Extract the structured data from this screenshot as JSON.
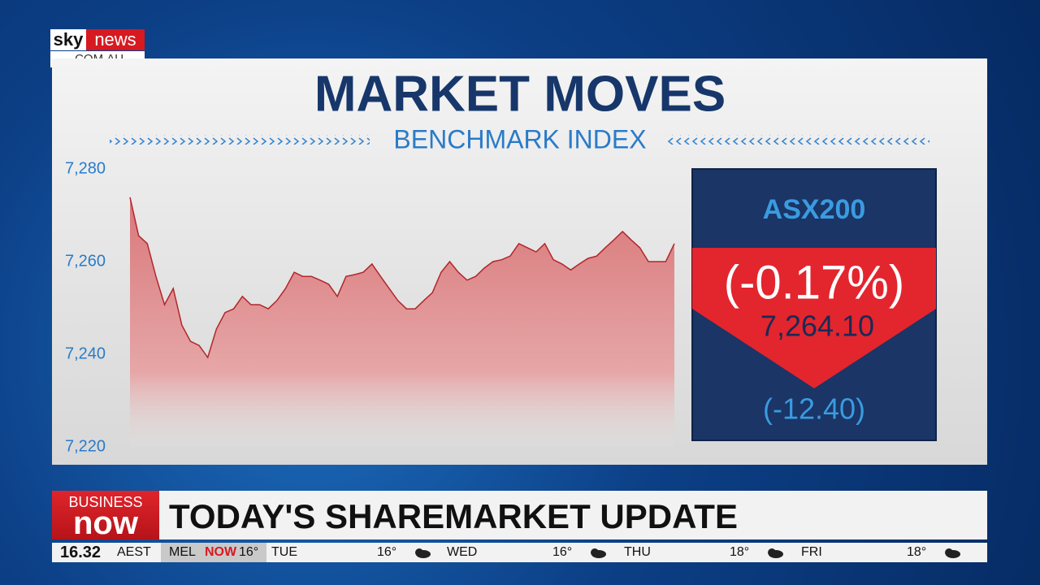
{
  "logo": {
    "brand": "sky",
    "network": "news",
    "domain": ".COM.AU"
  },
  "chart_data": {
    "type": "area",
    "title": "MARKET MOVES",
    "subtitle": "BENCHMARK INDEX",
    "values": [
      7273.9,
      7265.6,
      7263.9,
      7256.8,
      7250.7,
      7254.2,
      7246.3,
      7242.8,
      7241.9,
      7239.3,
      7245.4,
      7249,
      7249.8,
      7252.5,
      7250.7,
      7250.7,
      7249.8,
      7251.6,
      7254.2,
      7257.7,
      7256.8,
      7256.8,
      7256,
      7255.1,
      7252.5,
      7256.8,
      7257.2,
      7257.7,
      7259.5,
      7256.8,
      7254.2,
      7251.6,
      7249.8,
      7249.8,
      7251.6,
      7253.3,
      7257.7,
      7260,
      7257.7,
      7256,
      7256.8,
      7258.6,
      7260,
      7260.4,
      7261.2,
      7263.9,
      7263,
      7262.1,
      7263.9,
      7260.4,
      7259.5,
      7258.2,
      7259.5,
      7260.7,
      7261.2,
      7263,
      7264.7,
      7266.5,
      7264.7,
      7263,
      7260,
      7260,
      7260,
      7263.9
    ],
    "color": "#b3262b",
    "ylim": [
      7220,
      7280
    ],
    "yticks": [
      {
        "value": 7280,
        "label": "7,280"
      },
      {
        "value": 7260,
        "label": "7,260"
      },
      {
        "value": 7240,
        "label": "7,240"
      },
      {
        "value": 7220,
        "label": "7,220"
      }
    ],
    "grid": false
  },
  "badge": {
    "index": "ASX200",
    "change_percent": "(-0.17%)",
    "level": "7,264.10",
    "change_points": "(-12.40)"
  },
  "banner": {
    "program_top": "BUSINESS",
    "program_bottom": "now",
    "headline": "TODAY'S SHAREMARKET UPDATE"
  },
  "ticker": {
    "time": "16.32",
    "zone": "AEST",
    "city": "MEL",
    "now": "NOW",
    "now_temp": "16°",
    "days": [
      {
        "day": "TUE",
        "temp": "16°"
      },
      {
        "day": "WED",
        "temp": "16°"
      },
      {
        "day": "THU",
        "temp": "18°"
      },
      {
        "day": "FRI",
        "temp": "18°"
      }
    ]
  }
}
